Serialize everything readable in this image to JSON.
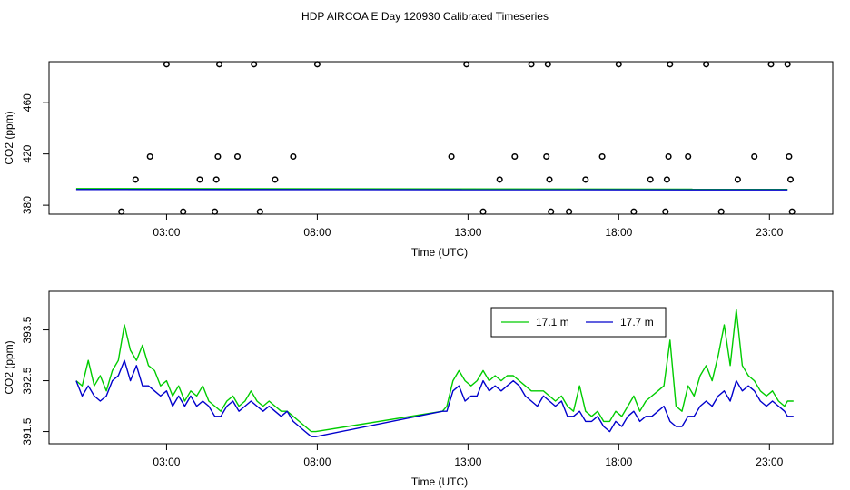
{
  "page_title": "HDP AIRCOA E  Day 120930  Calibrated Timeseries",
  "chart_data": [
    {
      "type": "scatter",
      "xlabel": "Time (UTC)",
      "ylabel": "CO2 (ppm)",
      "x_ticks": [
        {
          "value": 3,
          "label": "03:00"
        },
        {
          "value": 8,
          "label": "08:00"
        },
        {
          "value": 13,
          "label": "13:00"
        },
        {
          "value": 18,
          "label": "18:00"
        },
        {
          "value": 23,
          "label": "23:00"
        }
      ],
      "y_ticks": [
        {
          "value": 380,
          "label": "380"
        },
        {
          "value": 420,
          "label": "420"
        },
        {
          "value": 460,
          "label": "460"
        }
      ],
      "xlim": [
        -0.9,
        25.1
      ],
      "ylim": [
        373,
        492
      ],
      "calibration_points": [
        {
          "x": 1.5,
          "y": 375
        },
        {
          "x": 1.97,
          "y": 400
        },
        {
          "x": 2.45,
          "y": 418
        },
        {
          "x": 3.0,
          "y": 490
        },
        {
          "x": 3.55,
          "y": 375
        },
        {
          "x": 4.1,
          "y": 400
        },
        {
          "x": 4.6,
          "y": 375
        },
        {
          "x": 4.65,
          "y": 400
        },
        {
          "x": 4.7,
          "y": 418
        },
        {
          "x": 4.75,
          "y": 490
        },
        {
          "x": 5.35,
          "y": 418
        },
        {
          "x": 5.9,
          "y": 490
        },
        {
          "x": 6.1,
          "y": 375
        },
        {
          "x": 6.6,
          "y": 400
        },
        {
          "x": 7.2,
          "y": 418
        },
        {
          "x": 8.0,
          "y": 490
        },
        {
          "x": 12.45,
          "y": 418
        },
        {
          "x": 12.95,
          "y": 490
        },
        {
          "x": 13.5,
          "y": 375
        },
        {
          "x": 14.05,
          "y": 400
        },
        {
          "x": 14.55,
          "y": 418
        },
        {
          "x": 15.1,
          "y": 490
        },
        {
          "x": 15.6,
          "y": 418
        },
        {
          "x": 15.65,
          "y": 490
        },
        {
          "x": 15.7,
          "y": 400
        },
        {
          "x": 15.75,
          "y": 375
        },
        {
          "x": 16.35,
          "y": 375
        },
        {
          "x": 16.9,
          "y": 400
        },
        {
          "x": 17.45,
          "y": 418
        },
        {
          "x": 18.0,
          "y": 490
        },
        {
          "x": 18.5,
          "y": 375
        },
        {
          "x": 19.05,
          "y": 400
        },
        {
          "x": 19.55,
          "y": 375
        },
        {
          "x": 19.6,
          "y": 400
        },
        {
          "x": 19.65,
          "y": 418
        },
        {
          "x": 19.7,
          "y": 490
        },
        {
          "x": 20.3,
          "y": 418
        },
        {
          "x": 20.9,
          "y": 490
        },
        {
          "x": 21.4,
          "y": 375
        },
        {
          "x": 21.95,
          "y": 400
        },
        {
          "x": 22.5,
          "y": 418
        },
        {
          "x": 23.05,
          "y": 490
        },
        {
          "x": 23.6,
          "y": 490
        },
        {
          "x": 23.65,
          "y": 418
        },
        {
          "x": 23.7,
          "y": 400
        },
        {
          "x": 23.75,
          "y": 375
        }
      ],
      "series": [
        {
          "color": "#00cc00",
          "x": [
            0.0,
            23.6
          ],
          "y": [
            393.0,
            392.5
          ]
        },
        {
          "color": "#0000cc",
          "x": [
            0.0,
            23.6
          ],
          "y": [
            392.3,
            392.0
          ]
        }
      ]
    },
    {
      "type": "line",
      "xlabel": "Time (UTC)",
      "ylabel": "CO2 (ppm)",
      "x_ticks": [
        {
          "value": 3,
          "label": "03:00"
        },
        {
          "value": 8,
          "label": "08:00"
        },
        {
          "value": 13,
          "label": "13:00"
        },
        {
          "value": 18,
          "label": "18:00"
        },
        {
          "value": 23,
          "label": "23:00"
        }
      ],
      "y_ticks": [
        {
          "value": 391.5,
          "label": "391.5"
        },
        {
          "value": 392.5,
          "label": "392.5"
        },
        {
          "value": 393.5,
          "label": "393.5"
        }
      ],
      "xlim": [
        -0.9,
        25.1
      ],
      "ylim": [
        391.26,
        394.26
      ],
      "legend": {
        "position": "top-right",
        "entries": [
          {
            "label": "17.1 m",
            "color": "#00cc00"
          },
          {
            "label": "17.7 m",
            "color": "#0000cc"
          }
        ]
      },
      "series": [
        {
          "name": "17.1 m",
          "color": "#00cc00",
          "x": [
            0.0,
            0.2,
            0.4,
            0.6,
            0.8,
            1.0,
            1.2,
            1.4,
            1.6,
            1.8,
            2.0,
            2.2,
            2.4,
            2.6,
            2.8,
            3.0,
            3.2,
            3.4,
            3.6,
            3.8,
            4.0,
            4.2,
            4.4,
            4.6,
            4.8,
            5.0,
            5.2,
            5.4,
            5.6,
            5.8,
            6.0,
            6.2,
            6.4,
            6.6,
            6.8,
            7.0,
            7.2,
            7.4,
            7.6,
            7.8,
            7.95,
            12.15,
            12.3,
            12.5,
            12.7,
            12.9,
            13.1,
            13.3,
            13.5,
            13.7,
            13.9,
            14.1,
            14.3,
            14.5,
            14.7,
            14.9,
            15.1,
            15.3,
            15.5,
            15.7,
            15.9,
            16.1,
            16.3,
            16.5,
            16.7,
            16.9,
            17.1,
            17.3,
            17.5,
            17.7,
            17.9,
            18.1,
            18.3,
            18.5,
            18.7,
            18.9,
            19.1,
            19.3,
            19.5,
            19.7,
            19.9,
            20.1,
            20.3,
            20.5,
            20.7,
            20.9,
            21.1,
            21.3,
            21.5,
            21.7,
            21.9,
            22.1,
            22.3,
            22.5,
            22.7,
            22.9,
            23.1,
            23.3,
            23.5,
            23.6,
            23.8
          ],
          "y": [
            392.5,
            392.4,
            392.9,
            392.4,
            392.6,
            392.3,
            392.7,
            392.9,
            393.6,
            393.1,
            392.9,
            393.2,
            392.8,
            392.7,
            392.4,
            392.5,
            392.2,
            392.4,
            392.1,
            392.3,
            392.2,
            392.4,
            392.1,
            392.0,
            391.9,
            392.1,
            392.2,
            392.0,
            392.1,
            392.3,
            392.1,
            392.0,
            392.1,
            392.0,
            391.9,
            391.9,
            391.8,
            391.7,
            391.6,
            391.5,
            391.5,
            391.9,
            392.0,
            392.5,
            392.7,
            392.5,
            392.4,
            392.5,
            392.7,
            392.5,
            392.6,
            392.5,
            392.6,
            392.6,
            392.5,
            392.4,
            392.3,
            392.3,
            392.3,
            392.2,
            392.1,
            392.2,
            392.0,
            391.9,
            392.4,
            391.9,
            391.8,
            391.9,
            391.7,
            391.7,
            391.9,
            391.8,
            392.0,
            392.2,
            391.9,
            392.1,
            392.2,
            392.3,
            392.4,
            393.3,
            392.0,
            391.9,
            392.4,
            392.2,
            392.6,
            392.8,
            392.5,
            393.0,
            393.6,
            392.8,
            393.9,
            392.8,
            392.6,
            392.5,
            392.3,
            392.2,
            392.3,
            392.1,
            392.0,
            392.1,
            392.1
          ]
        },
        {
          "name": "17.7 m",
          "color": "#0000cc",
          "x": [
            0.0,
            0.2,
            0.4,
            0.6,
            0.8,
            1.0,
            1.2,
            1.4,
            1.6,
            1.8,
            2.0,
            2.2,
            2.4,
            2.6,
            2.8,
            3.0,
            3.2,
            3.4,
            3.6,
            3.8,
            4.0,
            4.2,
            4.4,
            4.6,
            4.8,
            5.0,
            5.2,
            5.4,
            5.6,
            5.8,
            6.0,
            6.2,
            6.4,
            6.6,
            6.8,
            7.0,
            7.2,
            7.4,
            7.6,
            7.8,
            7.95,
            12.15,
            12.3,
            12.5,
            12.7,
            12.9,
            13.1,
            13.3,
            13.5,
            13.7,
            13.9,
            14.1,
            14.3,
            14.5,
            14.7,
            14.9,
            15.1,
            15.3,
            15.5,
            15.7,
            15.9,
            16.1,
            16.3,
            16.5,
            16.7,
            16.9,
            17.1,
            17.3,
            17.5,
            17.7,
            17.9,
            18.1,
            18.3,
            18.5,
            18.7,
            18.9,
            19.1,
            19.3,
            19.5,
            19.7,
            19.9,
            20.1,
            20.3,
            20.5,
            20.7,
            20.9,
            21.1,
            21.3,
            21.5,
            21.7,
            21.9,
            22.1,
            22.3,
            22.5,
            22.7,
            22.9,
            23.1,
            23.3,
            23.5,
            23.6,
            23.8
          ],
          "y": [
            392.5,
            392.2,
            392.4,
            392.2,
            392.1,
            392.2,
            392.5,
            392.6,
            392.9,
            392.5,
            392.8,
            392.4,
            392.4,
            392.3,
            392.2,
            392.3,
            392.0,
            392.2,
            392.0,
            392.2,
            392.0,
            392.1,
            392.0,
            391.8,
            391.8,
            392.0,
            392.1,
            391.9,
            392.0,
            392.1,
            392.0,
            391.9,
            392.0,
            391.9,
            391.8,
            391.9,
            391.7,
            391.6,
            391.5,
            391.4,
            391.4,
            391.9,
            391.9,
            392.3,
            392.4,
            392.1,
            392.2,
            392.2,
            392.5,
            392.3,
            392.4,
            392.3,
            392.4,
            392.5,
            392.4,
            392.2,
            392.1,
            392.0,
            392.2,
            392.1,
            392.0,
            392.1,
            391.8,
            391.8,
            391.9,
            391.7,
            391.7,
            391.8,
            391.6,
            391.5,
            391.7,
            391.6,
            391.8,
            391.9,
            391.7,
            391.8,
            391.8,
            391.9,
            392.0,
            391.7,
            391.6,
            391.6,
            391.8,
            391.8,
            392.0,
            392.1,
            392.0,
            392.2,
            392.3,
            392.1,
            392.5,
            392.3,
            392.4,
            392.3,
            392.1,
            392.0,
            392.1,
            392.0,
            391.9,
            391.8,
            391.8
          ]
        }
      ]
    }
  ]
}
